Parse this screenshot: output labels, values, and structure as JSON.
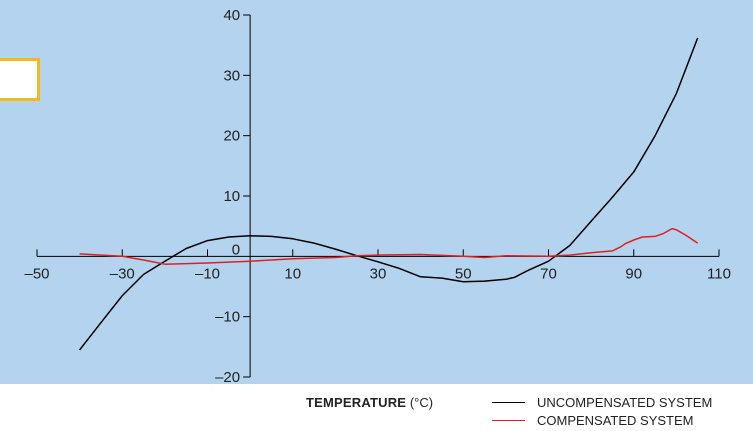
{
  "chart_data": {
    "type": "line",
    "title": "",
    "xlabel": "TEMPERATURE",
    "xlabel_unit": "(°C)",
    "ylabel": "",
    "xlim": [
      -50,
      110
    ],
    "ylim": [
      -20,
      40
    ],
    "x_ticks": [
      -50,
      -30,
      -10,
      10,
      30,
      50,
      70,
      90,
      110
    ],
    "y_ticks": [
      -20,
      -10,
      0,
      10,
      20,
      30,
      40
    ],
    "x_tick_labels": [
      "–50",
      "–30",
      "–10",
      "10",
      "30",
      "50",
      "70",
      "90",
      "110"
    ],
    "y_tick_labels": [
      "–20",
      "–10",
      "0",
      "10",
      "20",
      "30",
      "40"
    ],
    "grid": false,
    "legend_position": "bottom-right",
    "series": [
      {
        "name": "UNCOMPENSATED SYSTEM",
        "color": "#000000",
        "x": [
          -40,
          -35,
          -30,
          -25,
          -20,
          -15,
          -10,
          -5,
          0,
          5,
          10,
          15,
          20,
          25,
          30,
          35,
          40,
          45,
          50,
          55,
          60,
          62,
          65,
          70,
          75,
          80,
          85,
          90,
          95,
          100,
          105
        ],
        "y": [
          -15.5,
          -11,
          -6.5,
          -3,
          -0.8,
          1.3,
          2.6,
          3.2,
          3.4,
          3.3,
          2.9,
          2.2,
          1.2,
          0.1,
          -0.9,
          -2,
          -3.4,
          -3.6,
          -4.2,
          -4.1,
          -3.8,
          -3.5,
          -2.4,
          -0.8,
          1.8,
          5.8,
          9.8,
          14,
          20,
          27,
          36.2
        ]
      },
      {
        "name": "COMPENSATED SYSTEM",
        "color": "#e02020",
        "x": [
          -40,
          -30,
          -25,
          -20,
          -10,
          0,
          10,
          20,
          25,
          30,
          40,
          50,
          55,
          60,
          70,
          75,
          80,
          85,
          87,
          88,
          90,
          92,
          95,
          97,
          99,
          100,
          102,
          105
        ],
        "y": [
          0.4,
          0,
          -0.6,
          -1.3,
          -1.1,
          -0.8,
          -0.4,
          -0.2,
          0.1,
          0.2,
          0.3,
          0,
          -0.2,
          0.1,
          0,
          0.2,
          0.6,
          0.9,
          1.6,
          2.1,
          2.7,
          3.2,
          3.3,
          3.8,
          4.6,
          4.4,
          3.6,
          2.2
        ]
      }
    ]
  }
}
